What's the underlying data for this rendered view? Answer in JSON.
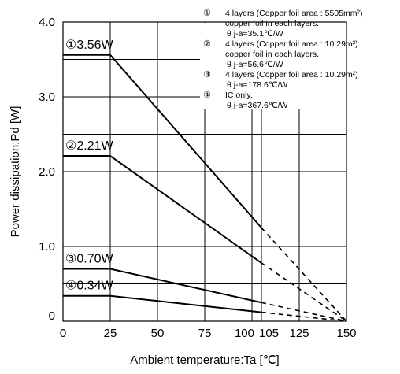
{
  "chart_data": {
    "type": "line",
    "xlabel": "Ambient temperature:Ta [℃]",
    "ylabel": "Power dissipation:Pd [W]",
    "xlim": [
      0,
      150
    ],
    "ylim": [
      0,
      4.0
    ],
    "x_ticks": [
      "0",
      "25",
      "50",
      "75",
      "100",
      "105",
      "125",
      "150"
    ],
    "x_tick_values": [
      0,
      25,
      50,
      75,
      100,
      105,
      125,
      150
    ],
    "y_ticks": [
      "0",
      "1.0",
      "2.0",
      "3.0",
      "4.0"
    ],
    "y_tick_values": [
      0,
      1,
      2,
      3,
      4
    ],
    "grid": true,
    "series": [
      {
        "name": "①3.56W",
        "points_solid": [
          [
            0,
            3.56
          ],
          [
            25,
            3.56
          ],
          [
            105,
            1.25
          ]
        ],
        "points_dashed": [
          [
            105,
            1.25
          ],
          [
            150,
            0
          ]
        ]
      },
      {
        "name": "②2.21W",
        "points_solid": [
          [
            0,
            2.21
          ],
          [
            25,
            2.21
          ],
          [
            105,
            0.78
          ]
        ],
        "points_dashed": [
          [
            105,
            0.78
          ],
          [
            150,
            0
          ]
        ]
      },
      {
        "name": "③0.70W",
        "points_solid": [
          [
            0,
            0.7
          ],
          [
            25,
            0.7
          ],
          [
            105,
            0.25
          ]
        ],
        "points_dashed": [
          [
            105,
            0.25
          ],
          [
            150,
            0
          ]
        ]
      },
      {
        "name": "④0.34W",
        "points_solid": [
          [
            0,
            0.34
          ],
          [
            25,
            0.34
          ],
          [
            105,
            0.12
          ]
        ],
        "points_dashed": [
          [
            105,
            0.12
          ],
          [
            150,
            0
          ]
        ]
      }
    ],
    "legend": [
      {
        "num": "①",
        "lines": [
          "4 layers (Copper foil area : 5505mm²)",
          "copper foil in each layers.",
          "θ j-a=35.1℃/W"
        ]
      },
      {
        "num": "②",
        "lines": [
          "4 layers (Copper foil area : 10.29m²)",
          "copper foil in each layers.",
          "θ j-a=56.6℃/W"
        ]
      },
      {
        "num": "③",
        "lines": [
          "4 layers (Copper foil area : 10.29m²)",
          "θ j-a=178.6℃/W"
        ]
      },
      {
        "num": "④",
        "lines": [
          "IC only.",
          "θ j-a=367.6℃/W"
        ]
      }
    ],
    "legend_placement": "top-right"
  }
}
